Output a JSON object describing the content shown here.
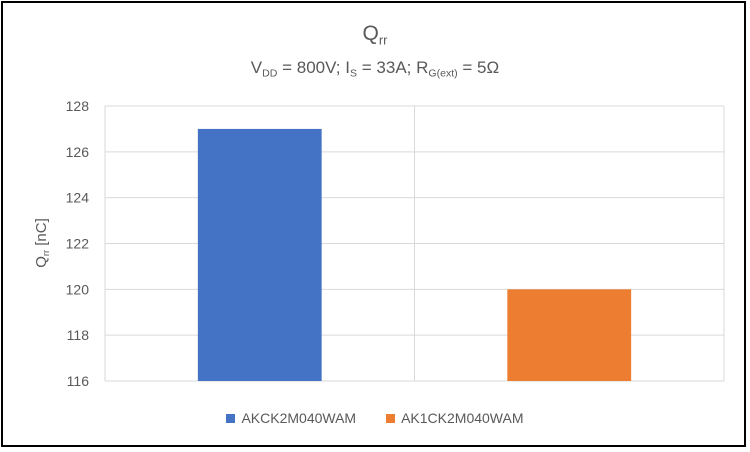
{
  "chart_data": {
    "type": "bar",
    "title_main": "Q",
    "title_sub": "rr",
    "subtitle": {
      "v": "V",
      "v_sub": "DD",
      "v_val": " = 800V; ",
      "i": "I",
      "i_sub": "S",
      "i_val": " = 33A; ",
      "r": "R",
      "r_sub": "G(ext)",
      "r_val": " = 5Ω"
    },
    "ylabel": {
      "main": "Q",
      "sub": "rr",
      "unit": " [nC]"
    },
    "categories": [
      "AKCK2M040WAM",
      "AK1CK2M040WAM"
    ],
    "values": [
      127,
      120
    ],
    "colors": [
      "#4472C4",
      "#ED7D31"
    ],
    "ylim": [
      116,
      128
    ],
    "yticks": [
      116,
      118,
      120,
      122,
      124,
      126,
      128
    ],
    "grid": true,
    "legend_position": "bottom",
    "legend": [
      "AKCK2M040WAM",
      "AK1CK2M040WAM"
    ]
  }
}
